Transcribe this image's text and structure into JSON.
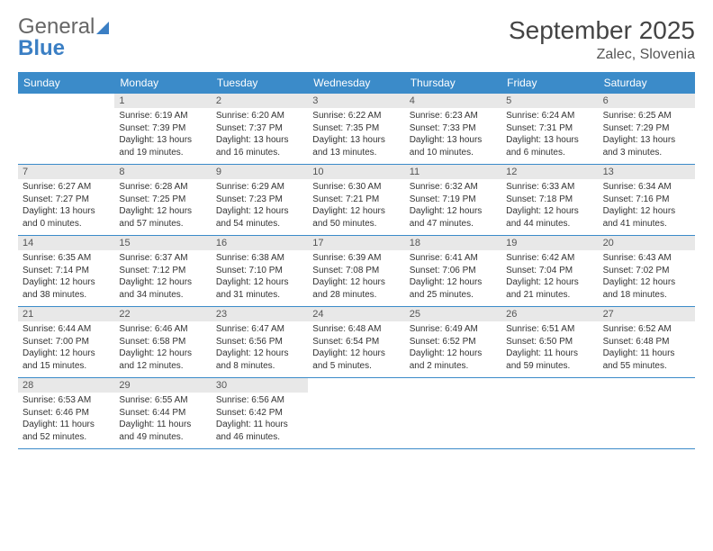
{
  "brand": {
    "line1": "General",
    "line2": "Blue"
  },
  "title": "September 2025",
  "location": "Zalec, Slovenia",
  "colors": {
    "header_bg": "#3b8bc9",
    "header_text": "#ffffff",
    "daynum_bg": "#e8e8e8",
    "rule": "#3b8bc9",
    "brand_blue": "#3b7fc4"
  },
  "day_names": [
    "Sunday",
    "Monday",
    "Tuesday",
    "Wednesday",
    "Thursday",
    "Friday",
    "Saturday"
  ],
  "weeks": [
    [
      {
        "n": "",
        "sunrise": "",
        "sunset": "",
        "daylight": ""
      },
      {
        "n": "1",
        "sunrise": "Sunrise: 6:19 AM",
        "sunset": "Sunset: 7:39 PM",
        "daylight": "Daylight: 13 hours and 19 minutes."
      },
      {
        "n": "2",
        "sunrise": "Sunrise: 6:20 AM",
        "sunset": "Sunset: 7:37 PM",
        "daylight": "Daylight: 13 hours and 16 minutes."
      },
      {
        "n": "3",
        "sunrise": "Sunrise: 6:22 AM",
        "sunset": "Sunset: 7:35 PM",
        "daylight": "Daylight: 13 hours and 13 minutes."
      },
      {
        "n": "4",
        "sunrise": "Sunrise: 6:23 AM",
        "sunset": "Sunset: 7:33 PM",
        "daylight": "Daylight: 13 hours and 10 minutes."
      },
      {
        "n": "5",
        "sunrise": "Sunrise: 6:24 AM",
        "sunset": "Sunset: 7:31 PM",
        "daylight": "Daylight: 13 hours and 6 minutes."
      },
      {
        "n": "6",
        "sunrise": "Sunrise: 6:25 AM",
        "sunset": "Sunset: 7:29 PM",
        "daylight": "Daylight: 13 hours and 3 minutes."
      }
    ],
    [
      {
        "n": "7",
        "sunrise": "Sunrise: 6:27 AM",
        "sunset": "Sunset: 7:27 PM",
        "daylight": "Daylight: 13 hours and 0 minutes."
      },
      {
        "n": "8",
        "sunrise": "Sunrise: 6:28 AM",
        "sunset": "Sunset: 7:25 PM",
        "daylight": "Daylight: 12 hours and 57 minutes."
      },
      {
        "n": "9",
        "sunrise": "Sunrise: 6:29 AM",
        "sunset": "Sunset: 7:23 PM",
        "daylight": "Daylight: 12 hours and 54 minutes."
      },
      {
        "n": "10",
        "sunrise": "Sunrise: 6:30 AM",
        "sunset": "Sunset: 7:21 PM",
        "daylight": "Daylight: 12 hours and 50 minutes."
      },
      {
        "n": "11",
        "sunrise": "Sunrise: 6:32 AM",
        "sunset": "Sunset: 7:19 PM",
        "daylight": "Daylight: 12 hours and 47 minutes."
      },
      {
        "n": "12",
        "sunrise": "Sunrise: 6:33 AM",
        "sunset": "Sunset: 7:18 PM",
        "daylight": "Daylight: 12 hours and 44 minutes."
      },
      {
        "n": "13",
        "sunrise": "Sunrise: 6:34 AM",
        "sunset": "Sunset: 7:16 PM",
        "daylight": "Daylight: 12 hours and 41 minutes."
      }
    ],
    [
      {
        "n": "14",
        "sunrise": "Sunrise: 6:35 AM",
        "sunset": "Sunset: 7:14 PM",
        "daylight": "Daylight: 12 hours and 38 minutes."
      },
      {
        "n": "15",
        "sunrise": "Sunrise: 6:37 AM",
        "sunset": "Sunset: 7:12 PM",
        "daylight": "Daylight: 12 hours and 34 minutes."
      },
      {
        "n": "16",
        "sunrise": "Sunrise: 6:38 AM",
        "sunset": "Sunset: 7:10 PM",
        "daylight": "Daylight: 12 hours and 31 minutes."
      },
      {
        "n": "17",
        "sunrise": "Sunrise: 6:39 AM",
        "sunset": "Sunset: 7:08 PM",
        "daylight": "Daylight: 12 hours and 28 minutes."
      },
      {
        "n": "18",
        "sunrise": "Sunrise: 6:41 AM",
        "sunset": "Sunset: 7:06 PM",
        "daylight": "Daylight: 12 hours and 25 minutes."
      },
      {
        "n": "19",
        "sunrise": "Sunrise: 6:42 AM",
        "sunset": "Sunset: 7:04 PM",
        "daylight": "Daylight: 12 hours and 21 minutes."
      },
      {
        "n": "20",
        "sunrise": "Sunrise: 6:43 AM",
        "sunset": "Sunset: 7:02 PM",
        "daylight": "Daylight: 12 hours and 18 minutes."
      }
    ],
    [
      {
        "n": "21",
        "sunrise": "Sunrise: 6:44 AM",
        "sunset": "Sunset: 7:00 PM",
        "daylight": "Daylight: 12 hours and 15 minutes."
      },
      {
        "n": "22",
        "sunrise": "Sunrise: 6:46 AM",
        "sunset": "Sunset: 6:58 PM",
        "daylight": "Daylight: 12 hours and 12 minutes."
      },
      {
        "n": "23",
        "sunrise": "Sunrise: 6:47 AM",
        "sunset": "Sunset: 6:56 PM",
        "daylight": "Daylight: 12 hours and 8 minutes."
      },
      {
        "n": "24",
        "sunrise": "Sunrise: 6:48 AM",
        "sunset": "Sunset: 6:54 PM",
        "daylight": "Daylight: 12 hours and 5 minutes."
      },
      {
        "n": "25",
        "sunrise": "Sunrise: 6:49 AM",
        "sunset": "Sunset: 6:52 PM",
        "daylight": "Daylight: 12 hours and 2 minutes."
      },
      {
        "n": "26",
        "sunrise": "Sunrise: 6:51 AM",
        "sunset": "Sunset: 6:50 PM",
        "daylight": "Daylight: 11 hours and 59 minutes."
      },
      {
        "n": "27",
        "sunrise": "Sunrise: 6:52 AM",
        "sunset": "Sunset: 6:48 PM",
        "daylight": "Daylight: 11 hours and 55 minutes."
      }
    ],
    [
      {
        "n": "28",
        "sunrise": "Sunrise: 6:53 AM",
        "sunset": "Sunset: 6:46 PM",
        "daylight": "Daylight: 11 hours and 52 minutes."
      },
      {
        "n": "29",
        "sunrise": "Sunrise: 6:55 AM",
        "sunset": "Sunset: 6:44 PM",
        "daylight": "Daylight: 11 hours and 49 minutes."
      },
      {
        "n": "30",
        "sunrise": "Sunrise: 6:56 AM",
        "sunset": "Sunset: 6:42 PM",
        "daylight": "Daylight: 11 hours and 46 minutes."
      },
      {
        "n": "",
        "sunrise": "",
        "sunset": "",
        "daylight": ""
      },
      {
        "n": "",
        "sunrise": "",
        "sunset": "",
        "daylight": ""
      },
      {
        "n": "",
        "sunrise": "",
        "sunset": "",
        "daylight": ""
      },
      {
        "n": "",
        "sunrise": "",
        "sunset": "",
        "daylight": ""
      }
    ]
  ]
}
